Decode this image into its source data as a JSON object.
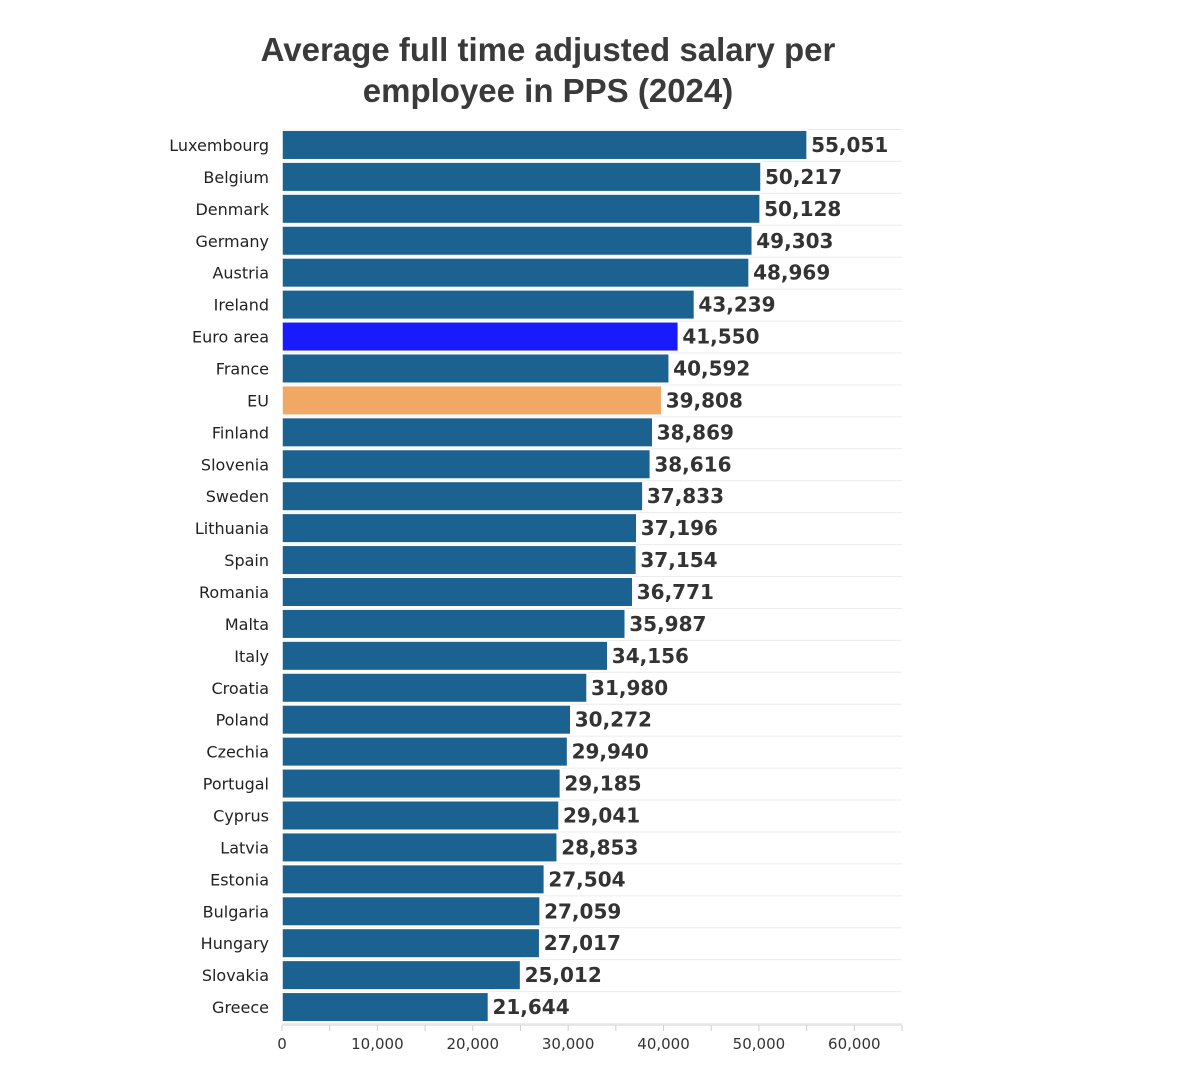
{
  "chart_data": {
    "type": "bar",
    "orientation": "horizontal",
    "title": "Average full time adjusted salary per employee in PPS (2024)",
    "title_lines": [
      "Average full time adjusted salary per",
      "employee in PPS (2024)"
    ],
    "xlabel": "",
    "ylabel": "",
    "xlim": [
      0,
      65000
    ],
    "x_ticks": [
      0,
      10000,
      20000,
      30000,
      40000,
      50000,
      60000
    ],
    "x_tick_labels": [
      "0",
      "10,000",
      "20,000",
      "30,000",
      "40,000",
      "50,000",
      "60,000"
    ],
    "grid": true,
    "categories": [
      "Luxembourg",
      "Belgium",
      "Denmark",
      "Germany",
      "Austria",
      "Ireland",
      "Euro area",
      "France",
      "EU",
      "Finland",
      "Slovenia",
      "Sweden",
      "Lithuania",
      "Spain",
      "Romania",
      "Malta",
      "Italy",
      "Croatia",
      "Poland",
      "Czechia",
      "Portugal",
      "Cyprus",
      "Latvia",
      "Estonia",
      "Bulgaria",
      "Hungary",
      "Slovakia",
      "Greece"
    ],
    "values": [
      55051,
      50217,
      50128,
      49303,
      48969,
      43239,
      41550,
      40592,
      39808,
      38869,
      38616,
      37833,
      37196,
      37154,
      36771,
      35987,
      34156,
      31980,
      30272,
      29940,
      29185,
      29041,
      28853,
      27504,
      27059,
      27017,
      25012,
      21644
    ],
    "value_labels": [
      "55,051",
      "50,217",
      "50,128",
      "49,303",
      "48,969",
      "43,239",
      "41,550",
      "40,592",
      "39,808",
      "38,869",
      "38,616",
      "37,833",
      "37,196",
      "37,154",
      "36,771",
      "35,987",
      "34,156",
      "31,980",
      "30,272",
      "29,940",
      "29,185",
      "29,041",
      "28,853",
      "27,504",
      "27,059",
      "27,017",
      "25,012",
      "21,644"
    ],
    "colors": {
      "default": "#1b6291",
      "Euro area": "#1a1aff",
      "EU": "#f0a864"
    }
  }
}
